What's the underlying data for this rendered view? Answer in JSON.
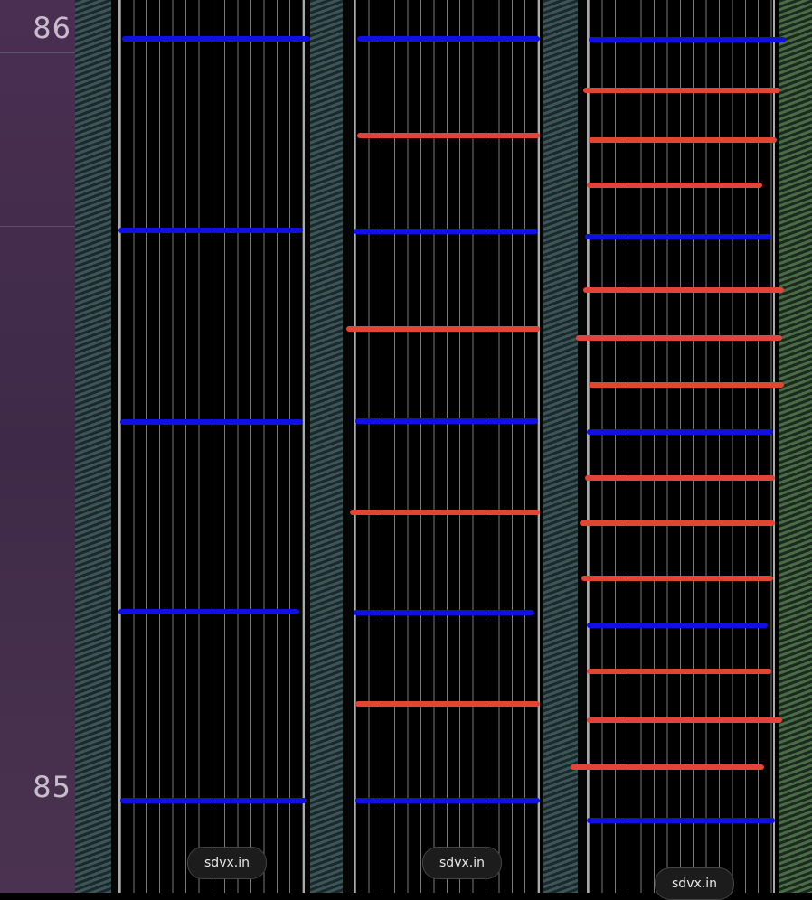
{
  "measures": {
    "top": "86",
    "bottom": "85"
  },
  "watermarks": [
    "sdvx.in",
    "sdvx.in",
    "sdvx.in"
  ],
  "colors": {
    "annotation_blue": "#1010e0",
    "annotation_red": "#e04535",
    "panel_left": "#4a2f52"
  }
}
